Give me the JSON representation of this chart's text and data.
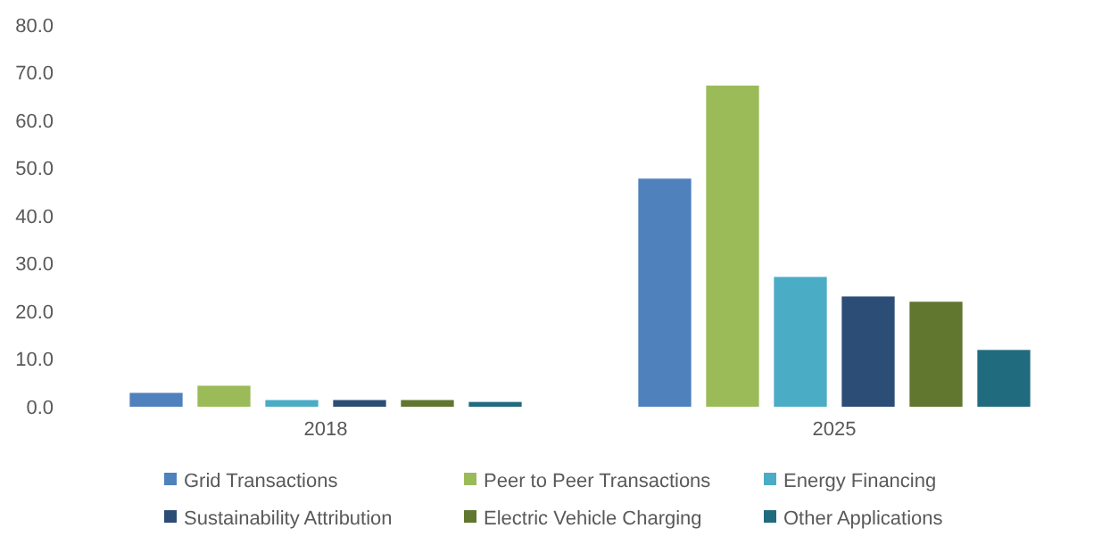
{
  "chart_data": {
    "type": "bar",
    "categories": [
      "2018",
      "2025"
    ],
    "series": [
      {
        "name": "Grid Transactions",
        "color": "#4f81bd",
        "values": [
          2.9,
          47.8
        ]
      },
      {
        "name": "Peer to Peer Transactions",
        "color": "#9bbb59",
        "values": [
          4.4,
          67.3
        ]
      },
      {
        "name": "Energy Financing",
        "color": "#4bacc6",
        "values": [
          1.4,
          27.2
        ]
      },
      {
        "name": "Sustainability Attribution",
        "color": "#2c4d75",
        "values": [
          1.4,
          23.1
        ]
      },
      {
        "name": "Electric Vehicle Charging",
        "color": "#61762e",
        "values": [
          1.4,
          22.0
        ]
      },
      {
        "name": "Other Applications",
        "color": "#216b7f",
        "values": [
          1.0,
          11.9
        ]
      }
    ],
    "ylim": [
      0,
      80
    ],
    "yticks": [
      {
        "value": 0,
        "label": "0.0"
      },
      {
        "value": 10,
        "label": "10.0"
      },
      {
        "value": 20,
        "label": "20.0"
      },
      {
        "value": 30,
        "label": "30.0"
      },
      {
        "value": 40,
        "label": "40.0"
      },
      {
        "value": 50,
        "label": "50.0"
      },
      {
        "value": 60,
        "label": "60.0"
      },
      {
        "value": 70,
        "label": "70.0"
      },
      {
        "value": 80,
        "label": "80.0"
      }
    ],
    "grid": false,
    "legend": "bottom"
  }
}
